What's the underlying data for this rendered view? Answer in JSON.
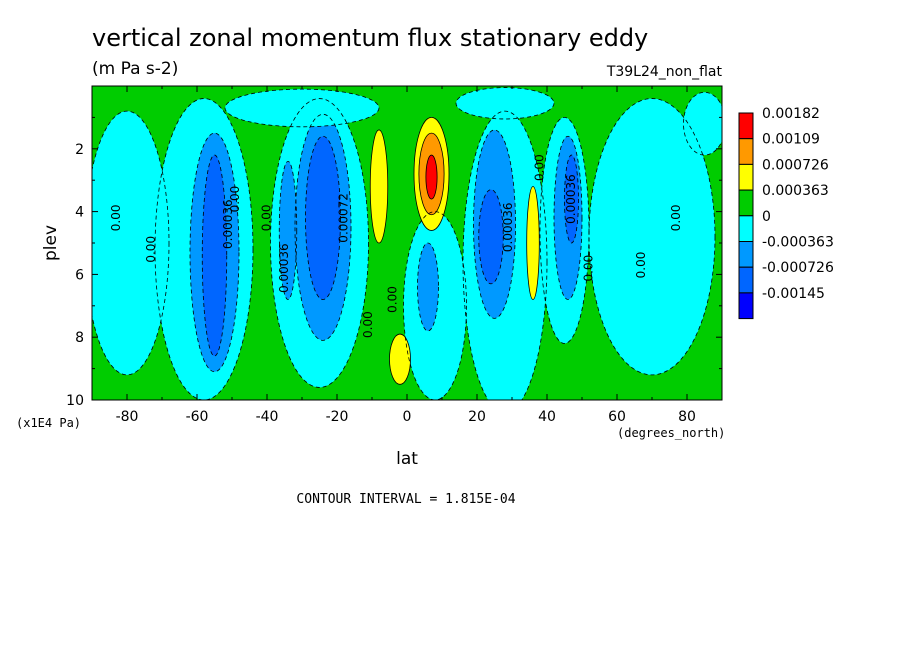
{
  "chart_data": {
    "type": "heatmap",
    "title": "vertical zonal momentum flux stationary eddy",
    "units": "(m Pa s-2)",
    "run_label": "T39L24_non_flat",
    "xlabel": "lat",
    "x_units": "(degrees_north)",
    "ylabel": "plev",
    "y_units": "(x1E4 Pa)",
    "xlim": [
      -90,
      90
    ],
    "ylim": [
      0,
      10
    ],
    "y_inverted": true,
    "x_ticks": [
      "-80",
      "-60",
      "-40",
      "-20",
      "0",
      "20",
      "40",
      "60",
      "80"
    ],
    "x_tick_values": [
      -80,
      -60,
      -40,
      -20,
      0,
      20,
      40,
      60,
      80
    ],
    "y_ticks": [
      "2",
      "4",
      "6",
      "8",
      "10"
    ],
    "y_tick_values": [
      2,
      4,
      6,
      8,
      10
    ],
    "footer": "CONTOUR INTERVAL = 1.815E-04",
    "legend": {
      "placement": "right",
      "labels": [
        "0.00182",
        "0.00109",
        "0.000726",
        "0.000363",
        "0",
        "-0.000363",
        "-0.000726",
        "-0.00145"
      ],
      "colors": [
        "#ff0000",
        "#ff9900",
        "#ffff00",
        "#00cc00",
        "#00ffff",
        "#0099ff",
        "#0066ff",
        "#0000ff"
      ]
    },
    "background_level_color": "#00cc00",
    "regions": [
      {
        "shape": "rect",
        "x": [
          -90,
          90
        ],
        "y": [
          0,
          10
        ],
        "color": "#00cc00"
      },
      {
        "shape": "ellipse",
        "cx": -80,
        "cy": 5,
        "rx": 12,
        "ry": 4.2,
        "color": "#00ffff"
      },
      {
        "shape": "ellipse",
        "cx": -58,
        "cy": 5.2,
        "rx": 14,
        "ry": 4.8,
        "color": "#00ffff"
      },
      {
        "shape": "ellipse",
        "cx": -55,
        "cy": 5.3,
        "rx": 7,
        "ry": 3.8,
        "color": "#0099ff"
      },
      {
        "shape": "ellipse",
        "cx": -55,
        "cy": 5.4,
        "rx": 3.5,
        "ry": 3.2,
        "color": "#0066ff"
      },
      {
        "shape": "ellipse",
        "cx": -25,
        "cy": 5,
        "rx": 14,
        "ry": 4.6,
        "color": "#00ffff"
      },
      {
        "shape": "ellipse",
        "cx": -24,
        "cy": 4.5,
        "rx": 8,
        "ry": 3.6,
        "color": "#0099ff"
      },
      {
        "shape": "ellipse",
        "cx": -24,
        "cy": 4.2,
        "rx": 5,
        "ry": 2.6,
        "color": "#0066ff"
      },
      {
        "shape": "ellipse",
        "cx": -34,
        "cy": 4.6,
        "rx": 2.5,
        "ry": 2.2,
        "color": "#0099ff"
      },
      {
        "shape": "ellipse",
        "cx": -30,
        "cy": 0.7,
        "rx": 22,
        "ry": 0.6,
        "color": "#00ffff"
      },
      {
        "shape": "ellipse",
        "cx": 28,
        "cy": 0.55,
        "rx": 14,
        "ry": 0.5,
        "color": "#00ffff"
      },
      {
        "shape": "ellipse",
        "cx": 8,
        "cy": 7,
        "rx": 9,
        "ry": 3,
        "color": "#00ffff"
      },
      {
        "shape": "ellipse",
        "cx": 6,
        "cy": 6.4,
        "rx": 3,
        "ry": 1.4,
        "color": "#0099ff"
      },
      {
        "shape": "ellipse",
        "cx": 28,
        "cy": 5.6,
        "rx": 12,
        "ry": 4.8,
        "color": "#00ffff"
      },
      {
        "shape": "ellipse",
        "cx": 25,
        "cy": 4.4,
        "rx": 6,
        "ry": 3,
        "color": "#0099ff"
      },
      {
        "shape": "ellipse",
        "cx": 24,
        "cy": 4.8,
        "rx": 3.5,
        "ry": 1.5,
        "color": "#0066ff"
      },
      {
        "shape": "ellipse",
        "cx": 45,
        "cy": 4.6,
        "rx": 7,
        "ry": 3.6,
        "color": "#00ffff"
      },
      {
        "shape": "ellipse",
        "cx": 46,
        "cy": 4.2,
        "rx": 4,
        "ry": 2.6,
        "color": "#0099ff"
      },
      {
        "shape": "ellipse",
        "cx": 47,
        "cy": 3.6,
        "rx": 2,
        "ry": 1.4,
        "color": "#0066ff"
      },
      {
        "shape": "ellipse",
        "cx": 70,
        "cy": 4.8,
        "rx": 18,
        "ry": 4.4,
        "color": "#00ffff"
      },
      {
        "shape": "ellipse",
        "cx": 85,
        "cy": 1.2,
        "rx": 6,
        "ry": 1,
        "color": "#00ffff"
      },
      {
        "shape": "ellipse",
        "cx": -8,
        "cy": 3.2,
        "rx": 2.5,
        "ry": 1.8,
        "color": "#ffff00"
      },
      {
        "shape": "ellipse",
        "cx": 7,
        "cy": 2.8,
        "rx": 5,
        "ry": 1.8,
        "color": "#ffff00"
      },
      {
        "shape": "ellipse",
        "cx": 7,
        "cy": 2.8,
        "rx": 3.6,
        "ry": 1.3,
        "color": "#ff9900"
      },
      {
        "shape": "ellipse",
        "cx": 7,
        "cy": 2.9,
        "rx": 1.6,
        "ry": 0.7,
        "color": "#ff0000"
      },
      {
        "shape": "ellipse",
        "cx": -2,
        "cy": 8.7,
        "rx": 3,
        "ry": 0.8,
        "color": "#ffff00"
      },
      {
        "shape": "ellipse",
        "cx": 36,
        "cy": 5,
        "rx": 1.8,
        "ry": 1.8,
        "color": "#ffff00"
      }
    ],
    "contour_labels": [
      {
        "text": "0.00",
        "lat": -82,
        "plev": 4.2
      },
      {
        "text": "0.00",
        "lat": -72,
        "plev": 5.2
      },
      {
        "text": "0.00036",
        "lat": -50,
        "plev": 4.4
      },
      {
        "text": "0.00",
        "lat": -48,
        "plev": 3.6
      },
      {
        "text": "0.00",
        "lat": -39,
        "plev": 4.2
      },
      {
        "text": "0.00036",
        "lat": -34,
        "plev": 5.8
      },
      {
        "text": "0.00072",
        "lat": -17,
        "plev": 4.2
      },
      {
        "text": "0.00",
        "lat": -10,
        "plev": 7.6
      },
      {
        "text": "0.00",
        "lat": -3,
        "plev": 6.8
      },
      {
        "text": "0.00036",
        "lat": 30,
        "plev": 4.5
      },
      {
        "text": "0.00",
        "lat": 39,
        "plev": 2.6
      },
      {
        "text": "0.00036",
        "lat": 48,
        "plev": 3.6
      },
      {
        "text": "0.00",
        "lat": 53,
        "plev": 5.8
      },
      {
        "text": "0.00",
        "lat": 68,
        "plev": 5.7
      },
      {
        "text": "0.00",
        "lat": 78,
        "plev": 4.2
      }
    ]
  }
}
